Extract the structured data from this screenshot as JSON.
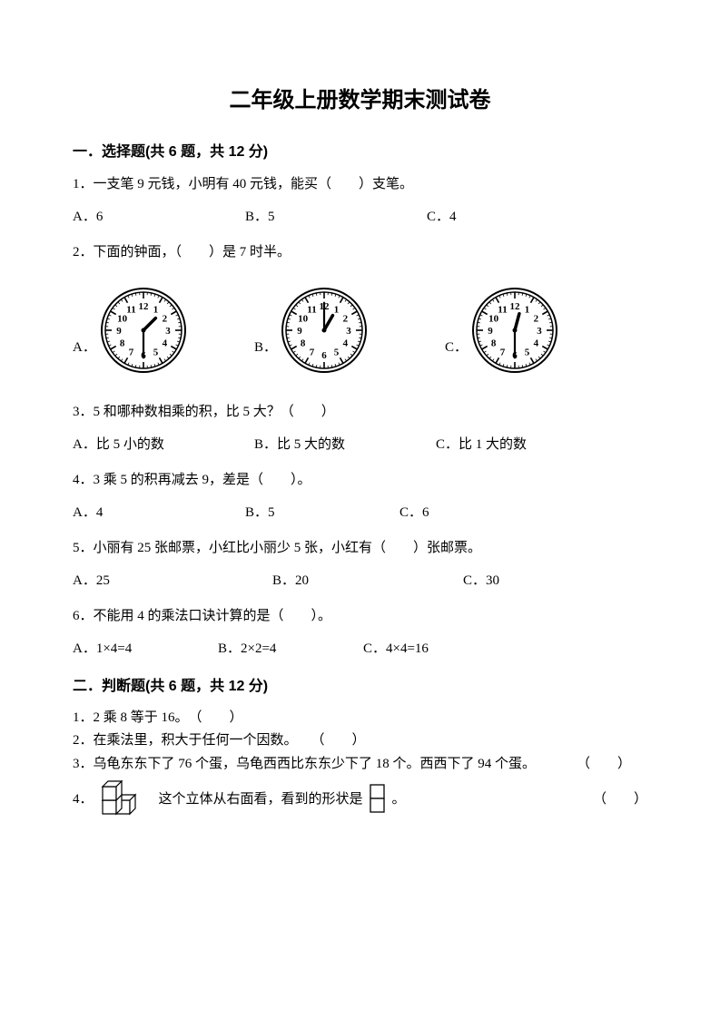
{
  "title": "二年级上册数学期末测试卷",
  "section1": {
    "header": "一．选择题(共 6 题，共 12 分)",
    "q1": {
      "text": "1．一支笔 9 元钱，小明有 40 元钱，能买（　　）支笔。",
      "a": "A．6",
      "b": "B．5",
      "c": "C．4"
    },
    "q2": {
      "text": "2．下面的钟面，（　　）是 7 时半。",
      "a": "A．",
      "b": "B．",
      "c": "C．"
    },
    "q3": {
      "text": "3．5 和哪种数相乘的积，比 5 大？（　　）",
      "a": "A．比 5 小的数",
      "b": "B．比 5 大的数",
      "c": "C．比 1 大的数"
    },
    "q4": {
      "text": "4．3 乘 5 的积再减去 9，差是（　　）。",
      "a": "A．4",
      "b": "B．5",
      "c": "C．6"
    },
    "q5": {
      "text": "5．小丽有 25 张邮票，小红比小丽少 5 张，小红有（　　）张邮票。",
      "a": "A．25",
      "b": "B．20",
      "c": "C．30"
    },
    "q6": {
      "text": "6．不能用 4 的乘法口诀计算的是（　　）。",
      "a": "A．1×4=4",
      "b": "B．2×2=4",
      "c": "C．4×4=16"
    }
  },
  "section2": {
    "header": "二．判断题(共 6 题，共 12 分)",
    "t1": "1．2 乘 8 等于 16。　（　　）",
    "t2": "2．在乘法里，积大于任何一个因数。　　（　　）",
    "t3": "3．乌龟东东下了 76 个蛋，乌龟西西比东东少下了 18 个。西西下了 94 个蛋。　　　　（　　）",
    "t4a": "4．",
    "t4b": "这个立体从右面看，看到的形状是",
    "t4c": "。",
    "t4paren": "（　　）"
  },
  "clocks": {
    "radius": 42,
    "face_stroke": "#000000",
    "clockA": {
      "hour_angle": 45,
      "minute_angle": 180
    },
    "clockB": {
      "hour_angle": 30,
      "minute_angle": 0
    },
    "clockC": {
      "hour_angle": 15,
      "minute_angle": 180
    }
  },
  "blocks_shape": {
    "cube_size": 15,
    "stroke": "#000000"
  },
  "two_square": {
    "size": 15,
    "stroke": "#000000"
  }
}
